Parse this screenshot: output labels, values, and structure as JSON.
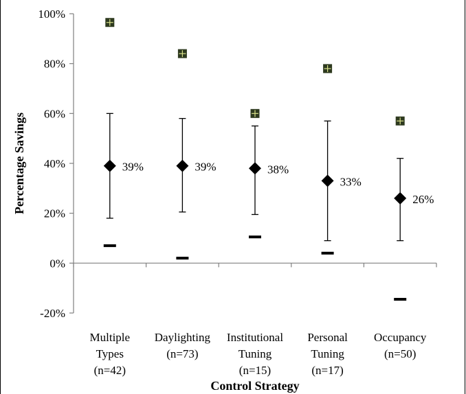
{
  "chart_data": {
    "type": "scatter",
    "xlabel": "Control Strategy",
    "ylabel": "Percentage Savings",
    "ylim": [
      -20,
      100
    ],
    "yticks": [
      "100%",
      "80%",
      "60%",
      "40%",
      "20%",
      "0%",
      "-20%"
    ],
    "ytick_values": [
      100,
      80,
      60,
      40,
      20,
      0,
      -20
    ],
    "categories": [
      [
        "Multiple",
        "Types",
        "(n=42)"
      ],
      [
        "Daylighting",
        "(n=73)"
      ],
      [
        "Institutional",
        "Tuning",
        "(n=15)"
      ],
      [
        "Personal",
        "Tuning",
        "(n=17)"
      ],
      [
        "Occupancy",
        "(n=50)"
      ]
    ],
    "series": [
      {
        "marker": "diamond",
        "values": [
          39,
          39,
          38,
          33,
          26
        ],
        "labels": [
          "39%",
          "39%",
          "38%",
          "33%",
          "26%"
        ]
      },
      {
        "marker": "error-bar-high",
        "values": [
          60,
          58,
          55,
          57,
          42
        ]
      },
      {
        "marker": "error-bar-low",
        "values": [
          18,
          20.5,
          19.5,
          9,
          9
        ]
      },
      {
        "marker": "square-plus",
        "values": [
          96.5,
          84,
          60,
          78,
          57
        ]
      },
      {
        "marker": "dash",
        "values": [
          7,
          2,
          10.5,
          4,
          -14.5
        ]
      }
    ],
    "colors": {
      "max_marker": "#2e3a1f",
      "max_marker_cross": "#d8e08a",
      "axis": "#808080",
      "marker": "#000000"
    },
    "grid": false,
    "legend": "none"
  }
}
